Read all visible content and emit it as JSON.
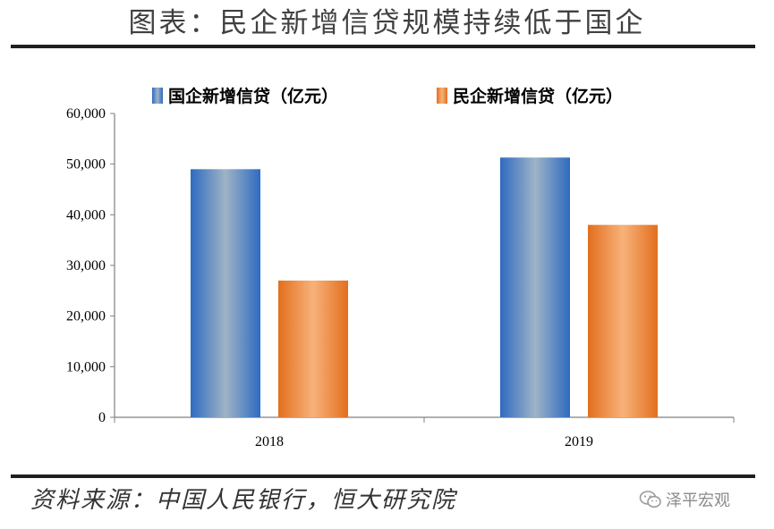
{
  "title": "图表：民企新增信贷规模持续低于国企",
  "source": "资料来源：中国人民银行，恒大研究院",
  "watermark": "泽平宏观",
  "colors": {
    "soe": "#3f7dc4",
    "private": "#e8772e"
  },
  "chart_data": {
    "type": "bar",
    "title": "",
    "categories": [
      "2018",
      "2019"
    ],
    "series": [
      {
        "name": "国企新增信贷（亿元）",
        "values": [
          49000,
          51300
        ]
      },
      {
        "name": "民企新增信贷（亿元）",
        "values": [
          27000,
          38000
        ]
      }
    ],
    "ylim": [
      0,
      60000
    ],
    "yticks": [
      "0",
      "10,000",
      "20,000",
      "30,000",
      "40,000",
      "50,000",
      "60,000"
    ],
    "xlabel": "",
    "ylabel": "",
    "legend_position": "top",
    "grid": false
  }
}
